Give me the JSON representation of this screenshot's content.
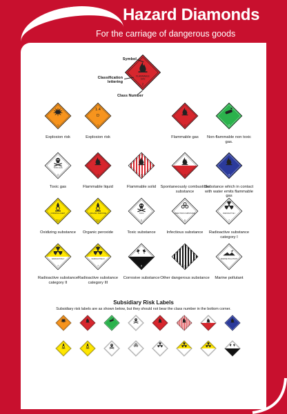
{
  "header": {
    "title": "Hazard Diamonds",
    "subtitle": "For the carriage of dangerous goods"
  },
  "anatomy": {
    "symbol_label": "Symbol",
    "lettering_label": "Classification lettering",
    "class_label": "Class Number"
  },
  "rows": [
    [
      {
        "caption": "Explosion risk",
        "fill": "#f7941d",
        "icon": "explosion-icon",
        "text": "",
        "class": "1"
      },
      {
        "caption": "Explosion risk",
        "fill": "#f7941d",
        "icon": "text-label",
        "text": "1.4\nD",
        "class": "1"
      },
      {
        "caption": "Flammable gas",
        "fill": "#d7262d",
        "icon": "flame-icon",
        "text": "",
        "class": "2"
      },
      {
        "caption": "Non-flammable non toxic gas.",
        "fill": "#2bb24c",
        "icon": "gas-cylinder-icon",
        "text": "",
        "class": "2"
      }
    ],
    [
      {
        "caption": "Toxic gas",
        "fill": "#ffffff",
        "icon": "skull-icon",
        "text": "TOXIC GAS",
        "class": "2"
      },
      {
        "caption": "Flammable liquid",
        "fill": "#d7262d",
        "icon": "flame-icon",
        "text": "",
        "class": "3"
      },
      {
        "caption": "Flammable solid",
        "fill": "stripes-red",
        "icon": "flame-icon",
        "text": "",
        "class": "4"
      },
      {
        "caption": "Spontaneously combustible substance",
        "fill": "half-red",
        "icon": "flame-icon",
        "text": "",
        "class": "4"
      },
      {
        "caption": "Substance which in contact with water emits flammable gas",
        "fill": "#2b3a9b",
        "icon": "flame-icon",
        "text": "",
        "class": "4"
      }
    ],
    [
      {
        "caption": "Oxidizing substance",
        "fill": "#ffe600",
        "icon": "oxidizer-icon",
        "text": "OXIDIZING AGENT",
        "class": "5.1"
      },
      {
        "caption": "Organic peroxide",
        "fill": "#ffe600",
        "icon": "oxidizer-icon",
        "text": "ORGANIC PEROXIDE",
        "class": "5.2"
      },
      {
        "caption": "Toxic substance",
        "fill": "#ffffff",
        "icon": "skull-icon",
        "text": "TOXIC",
        "class": "6"
      },
      {
        "caption": "Infectious substance",
        "fill": "#ffffff",
        "icon": "biohazard-icon",
        "text": "INFECTIOUS SUBSTANCE",
        "class": "6"
      },
      {
        "caption": "Radioactive substance category I",
        "fill": "#ffffff",
        "icon": "radiation-icon",
        "text": "RADIOACTIVE I",
        "class": "7"
      }
    ],
    [
      {
        "caption": "Radioactive substance category II",
        "fill": "half-yellow",
        "icon": "radiation-icon",
        "text": "RADIOACTIVE II",
        "class": "7"
      },
      {
        "caption": "Radioactive substance category III",
        "fill": "half-yellow",
        "icon": "radiation-icon",
        "text": "RADIOACTIVE III",
        "class": "7"
      },
      {
        "caption": "Corrosive substance",
        "fill": "half-black",
        "icon": "corrosive-icon",
        "text": "CORROSIVE",
        "class": "8"
      },
      {
        "caption": "Other dangerous substance",
        "fill": "stripes-black",
        "icon": "",
        "text": "",
        "class": "9"
      },
      {
        "caption": "Marine pollutant",
        "fill": "#ffffff",
        "icon": "marine-pollutant-icon",
        "text": "MARINE POLLUTANT",
        "class": ""
      }
    ]
  ],
  "subsidiary": {
    "title": "Subsidiary Risk Labels",
    "description": "Subsidiary risk labels are as shown below, but they should not bear the class number in the bottom corner.",
    "row1": [
      {
        "fill": "#f7941d",
        "icon": "explosion-icon"
      },
      {
        "fill": "#d7262d",
        "icon": "flame-icon"
      },
      {
        "fill": "#2bb24c",
        "icon": "gas-cylinder-icon"
      },
      {
        "fill": "#ffffff",
        "icon": "skull-icon"
      },
      {
        "fill": "#d7262d",
        "icon": "flame-icon"
      },
      {
        "fill": "stripes-red",
        "icon": "flame-icon"
      },
      {
        "fill": "half-red",
        "icon": "flame-icon"
      },
      {
        "fill": "#2b3a9b",
        "icon": "flame-icon"
      }
    ],
    "row2": [
      {
        "fill": "#ffe600",
        "icon": "oxidizer-icon"
      },
      {
        "fill": "#ffe600",
        "icon": "oxidizer-icon"
      },
      {
        "fill": "#ffffff",
        "icon": "skull-icon"
      },
      {
        "fill": "#ffffff",
        "icon": "biohazard-icon"
      },
      {
        "fill": "#ffffff",
        "icon": "radiation-icon"
      },
      {
        "fill": "half-yellow",
        "icon": "radiation-icon"
      },
      {
        "fill": "half-yellow",
        "icon": "radiation-icon"
      },
      {
        "fill": "half-black",
        "icon": "corrosive-icon"
      }
    ]
  },
  "colors": {
    "frame": "#c8102e",
    "orange": "#f7941d",
    "red": "#d7262d",
    "green": "#2bb24c",
    "blue": "#2b3a9b",
    "yellow": "#ffe600"
  }
}
